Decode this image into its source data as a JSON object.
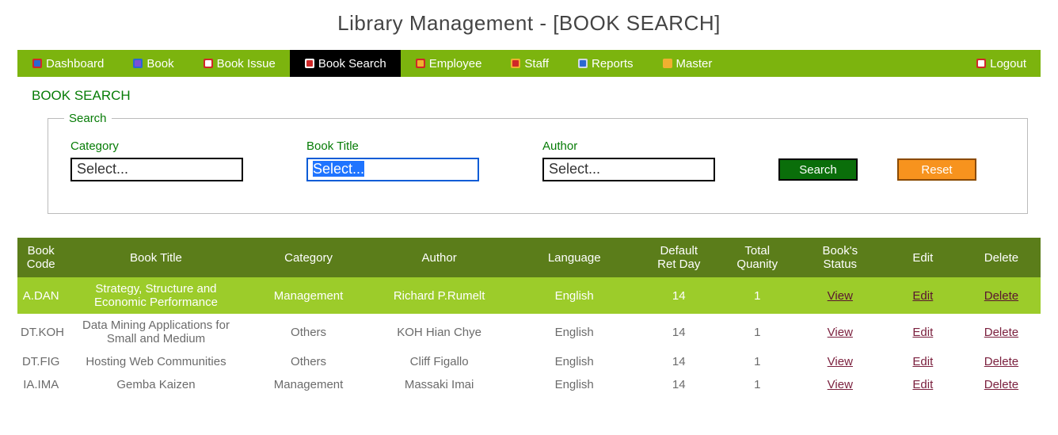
{
  "header": {
    "title": "Library Management - [BOOK SEARCH]"
  },
  "nav": {
    "items": [
      {
        "label": "Dashboard",
        "active": false,
        "icon_color1": "#d02828",
        "icon_color2": "#2a68d0"
      },
      {
        "label": "Book",
        "active": false,
        "icon_color1": "#2a68d0",
        "icon_color2": "#7a4fd6"
      },
      {
        "label": "Book Issue",
        "active": false,
        "icon_color1": "#d02828",
        "icon_color2": "#ffffff"
      },
      {
        "label": "Book Search",
        "active": true,
        "icon_color1": "#ffffff",
        "icon_color2": "#d02828"
      },
      {
        "label": "Employee",
        "active": false,
        "icon_color1": "#d02828",
        "icon_color2": "#f0b030"
      },
      {
        "label": "Staff",
        "active": false,
        "icon_color1": "#f0b030",
        "icon_color2": "#d02828"
      },
      {
        "label": "Reports",
        "active": false,
        "icon_color1": "#cfd8e6",
        "icon_color2": "#2a68d0"
      },
      {
        "label": "Master",
        "active": false,
        "icon_color1": "#f0b030",
        "icon_color2": "#f0b030"
      }
    ],
    "logout": {
      "label": "Logout",
      "icon_color1": "#d02828",
      "icon_color2": "#ffffff"
    }
  },
  "section": {
    "heading": "BOOK SEARCH"
  },
  "search": {
    "legend": "Search",
    "category": {
      "label": "Category",
      "value": "Select...",
      "highlighted": false
    },
    "title": {
      "label": "Book Title",
      "value": "Select...",
      "highlighted": true
    },
    "author": {
      "label": "Author",
      "value": "Select...",
      "highlighted": false
    },
    "search_button": "Search",
    "reset_button": "Reset"
  },
  "table": {
    "columns": [
      "Book Code",
      "Book Title",
      "Category",
      "Author",
      "Language",
      "Default Ret Day",
      "Total Quanity",
      "Book's Status",
      "Edit",
      "Delete"
    ],
    "action_labels": {
      "view": "View",
      "edit": "Edit",
      "delete": "Delete"
    },
    "rows": [
      {
        "code": "A.DAN",
        "title": "Strategy, Structure and Economic Performance",
        "category": "Management",
        "author": "Richard P.Rumelt",
        "language": "English",
        "ret_day": "14",
        "qty": "1",
        "selected": true
      },
      {
        "code": "DT.KOH",
        "title": "Data Mining Applications for Small and Medium",
        "category": "Others",
        "author": "KOH Hian Chye",
        "language": "English",
        "ret_day": "14",
        "qty": "1",
        "selected": false
      },
      {
        "code": "DT.FIG",
        "title": "Hosting Web Communities",
        "category": "Others",
        "author": "Cliff Figallo",
        "language": "English",
        "ret_day": "14",
        "qty": "1",
        "selected": false
      },
      {
        "code": "IA.IMA",
        "title": "Gemba Kaizen",
        "category": "Management",
        "author": "Massaki Imai",
        "language": "English",
        "ret_day": "14",
        "qty": "1",
        "selected": false
      }
    ]
  },
  "colors": {
    "nav_bg": "#7cb40e",
    "nav_active_bg": "#000000",
    "heading_text": "#067c06",
    "th_bg": "#5b7d1a",
    "row_selected_bg": "#9ccc2a",
    "link_color": "#7a1f3d",
    "search_btn_bg": "#0a6e0a",
    "reset_btn_bg": "#f7931e"
  }
}
